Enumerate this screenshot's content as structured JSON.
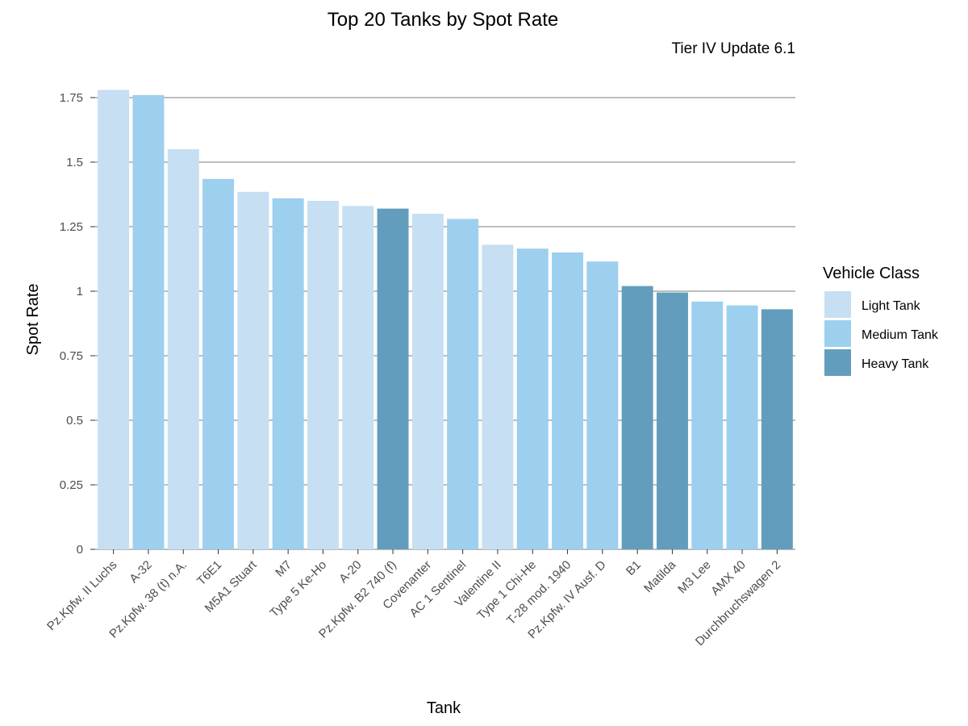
{
  "chart_data": {
    "type": "bar",
    "title": "Top 20 Tanks by Spot Rate",
    "subtitle": "Tier IV Update 6.1",
    "xlabel": "Tank",
    "ylabel": "Spot Rate",
    "ylim": [
      0,
      1.8
    ],
    "yticks": [
      0,
      0.25,
      0.5,
      0.75,
      1,
      1.25,
      1.5,
      1.75
    ],
    "ytick_labels": [
      "0",
      "0.25",
      "0.5",
      "0.75",
      "1",
      "1.25",
      "1.5",
      "1.75"
    ],
    "grid": "horizontal",
    "legend": {
      "title": "Vehicle Class",
      "position": "right",
      "entries": [
        {
          "label": "Light Tank",
          "color": "#c6dff3"
        },
        {
          "label": "Medium Tank",
          "color": "#9dcfef"
        },
        {
          "label": "Heavy Tank",
          "color": "#639dbd"
        }
      ]
    },
    "bars": [
      {
        "category": "Pz.Kpfw. II Luchs",
        "value": 1.78,
        "class": "Light Tank"
      },
      {
        "category": "A-32",
        "value": 1.76,
        "class": "Medium Tank"
      },
      {
        "category": "Pz.Kpfw. 38 (t) n.A.",
        "value": 1.55,
        "class": "Light Tank"
      },
      {
        "category": "T6E1",
        "value": 1.435,
        "class": "Medium Tank"
      },
      {
        "category": "M5A1 Stuart",
        "value": 1.385,
        "class": "Light Tank"
      },
      {
        "category": "M7",
        "value": 1.36,
        "class": "Medium Tank"
      },
      {
        "category": "Type 5 Ke-Ho",
        "value": 1.35,
        "class": "Light Tank"
      },
      {
        "category": "A-20",
        "value": 1.33,
        "class": "Light Tank"
      },
      {
        "category": "Pz.Kpfw. B2 740 (f)",
        "value": 1.32,
        "class": "Heavy Tank"
      },
      {
        "category": "Covenanter",
        "value": 1.3,
        "class": "Light Tank"
      },
      {
        "category": "AC 1 Sentinel",
        "value": 1.28,
        "class": "Medium Tank"
      },
      {
        "category": "Valentine II",
        "value": 1.18,
        "class": "Light Tank"
      },
      {
        "category": "Type 1 Chi-He",
        "value": 1.165,
        "class": "Medium Tank"
      },
      {
        "category": "T-28 mod. 1940",
        "value": 1.15,
        "class": "Medium Tank"
      },
      {
        "category": "Pz.Kpfw. IV Ausf. D",
        "value": 1.115,
        "class": "Medium Tank"
      },
      {
        "category": "B1",
        "value": 1.02,
        "class": "Heavy Tank"
      },
      {
        "category": "Matilda",
        "value": 0.995,
        "class": "Heavy Tank"
      },
      {
        "category": "M3 Lee",
        "value": 0.96,
        "class": "Medium Tank"
      },
      {
        "category": "AMX 40",
        "value": 0.945,
        "class": "Medium Tank"
      },
      {
        "category": "Durchbruchswagen 2",
        "value": 0.93,
        "class": "Heavy Tank"
      }
    ]
  }
}
